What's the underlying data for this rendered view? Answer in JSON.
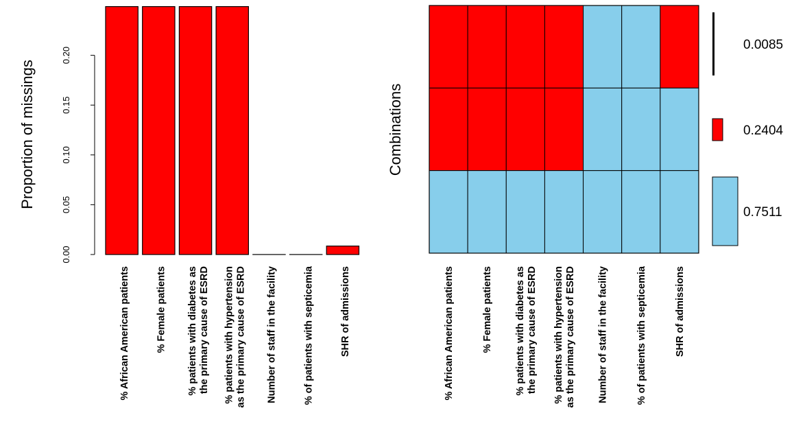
{
  "chart_data": [
    {
      "type": "bar",
      "ylabel": "Proportion of missings",
      "categories": [
        [
          "% African American patients"
        ],
        [
          "% Female patients"
        ],
        [
          "% patients with diabetes as",
          "the primary cause of ESRD"
        ],
        [
          "% patients with hypertension",
          "as the primary cause of ESRD"
        ],
        [
          "Number of staff in the facility"
        ],
        [
          "% of patients with septicemia"
        ],
        [
          "SHR of admissions"
        ]
      ],
      "values": [
        0.2489,
        0.2489,
        0.2489,
        0.2489,
        0.0,
        0.0,
        0.0085
      ],
      "ylim": [
        0,
        0.25
      ],
      "yticks": [
        "0.00",
        "0.05",
        "0.10",
        "0.15",
        "0.20"
      ],
      "color": "#ff0000"
    },
    {
      "type": "heatmap",
      "ylabel": "Combinations",
      "categories": [
        [
          "% African American patients"
        ],
        [
          "% Female patients"
        ],
        [
          "% patients with diabetes as",
          "the primary cause of ESRD"
        ],
        [
          "% patients with hypertension",
          "as the primary cause of ESRD"
        ],
        [
          "Number of staff in the facility"
        ],
        [
          "% of patients with septicemia"
        ],
        [
          "SHR of admissions"
        ]
      ],
      "rows": [
        {
          "proportion": 0.0085,
          "label": "0.0085",
          "missing": [
            1,
            1,
            1,
            1,
            0,
            0,
            1
          ]
        },
        {
          "proportion": 0.2404,
          "label": "0.2404",
          "missing": [
            1,
            1,
            1,
            1,
            0,
            0,
            0
          ]
        },
        {
          "proportion": 0.7511,
          "label": "0.7511",
          "missing": [
            0,
            0,
            0,
            0,
            0,
            0,
            0
          ]
        }
      ],
      "colors": {
        "missing": "#ff0000",
        "observed": "#87ceeb"
      }
    }
  ]
}
